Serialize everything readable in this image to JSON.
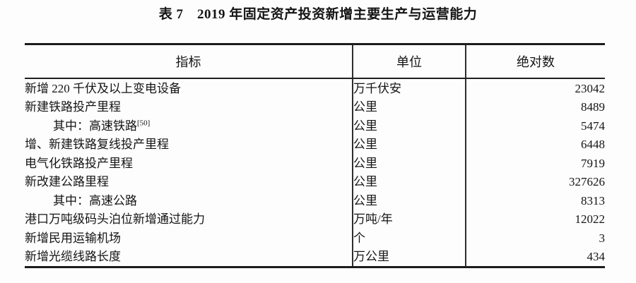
{
  "title": "表 7　2019 年固定资产投资新增主要生产与运营能力",
  "table": {
    "headers": [
      "指标",
      "单位",
      "绝对数"
    ],
    "line_color": "#1c1c1c",
    "rows": [
      {
        "indicator": "新增 220 千伏及以上变电设备",
        "footnote": "",
        "indent": false,
        "unit": "万千伏安",
        "value": "23042"
      },
      {
        "indicator": "新建铁路投产里程",
        "footnote": "",
        "indent": false,
        "unit": "公里",
        "value": "8489"
      },
      {
        "indicator": "其中：高速铁路",
        "footnote": "[50]",
        "indent": true,
        "unit": "公里",
        "value": "5474"
      },
      {
        "indicator": "增、新建铁路复线投产里程",
        "footnote": "",
        "indent": false,
        "unit": "公里",
        "value": "6448"
      },
      {
        "indicator": "电气化铁路投产里程",
        "footnote": "",
        "indent": false,
        "unit": "公里",
        "value": "7919"
      },
      {
        "indicator": "新改建公路里程",
        "footnote": "",
        "indent": false,
        "unit": "公里",
        "value": "327626"
      },
      {
        "indicator": "其中：高速公路",
        "footnote": "",
        "indent": true,
        "unit": "公里",
        "value": "8313"
      },
      {
        "indicator": "港口万吨级码头泊位新增通过能力",
        "footnote": "",
        "indent": false,
        "unit": "万吨/年",
        "value": "12022"
      },
      {
        "indicator": "新增民用运输机场",
        "footnote": "",
        "indent": false,
        "unit": "个",
        "value": "3"
      },
      {
        "indicator": "新增光缆线路长度",
        "footnote": "",
        "indent": false,
        "unit": "万公里",
        "value": "434"
      }
    ]
  }
}
